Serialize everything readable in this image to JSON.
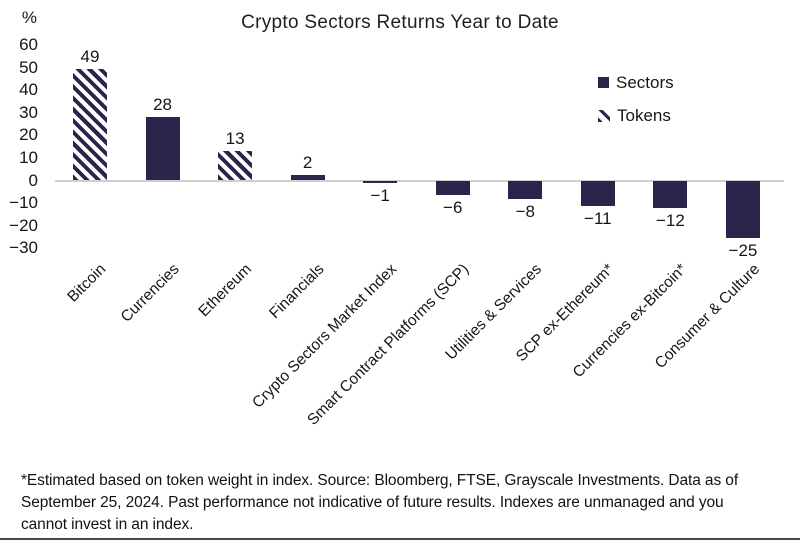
{
  "title": "Crypto Sectors Returns Year to Date",
  "y_axis": {
    "unit": "%",
    "ticks": [
      60,
      50,
      40,
      30,
      20,
      10,
      0,
      -10,
      -20,
      -30
    ]
  },
  "legend": {
    "items": [
      {
        "label": "Sectors",
        "swatch": "solid"
      },
      {
        "label": "Tokens",
        "swatch": "hatched"
      }
    ]
  },
  "chart_data": {
    "type": "bar",
    "title": "Crypto Sectors Returns Year to Date",
    "categories": [
      "Bitcoin",
      "Currencies",
      "Ethereum",
      "Financials",
      "Crypto Sectors Market Index",
      "Smart Contract Platforms (SCP)",
      "Utilities & Services",
      "SCP ex-Ethereum*",
      "Currencies ex-Bitcoin*",
      "Consumer & Culture"
    ],
    "values": [
      49,
      28,
      13,
      2,
      -1,
      -6,
      -8,
      -11,
      -12,
      -25
    ],
    "bar_styles": [
      "hatched",
      "solid",
      "hatched",
      "solid",
      "solid",
      "solid",
      "solid",
      "solid",
      "solid",
      "solid"
    ],
    "ylabel": "%",
    "ylim": [
      -30,
      60
    ],
    "grid": false,
    "legend_position": "upper right",
    "legend_entries": [
      "Sectors",
      "Tokens"
    ],
    "colors": {
      "bar": "#2c254b",
      "hatch_background": "#ffffff",
      "zero_line": "#cfcfcf"
    }
  },
  "footnote": {
    "lines": [
      "*Estimated based on token weight in index. Source: Bloomberg, FTSE, Grayscale Investments. Data as of",
      "September 25, 2024. Past performance not indicative of future results. Indexes are unmanaged and you",
      "cannot invest in an index."
    ]
  }
}
